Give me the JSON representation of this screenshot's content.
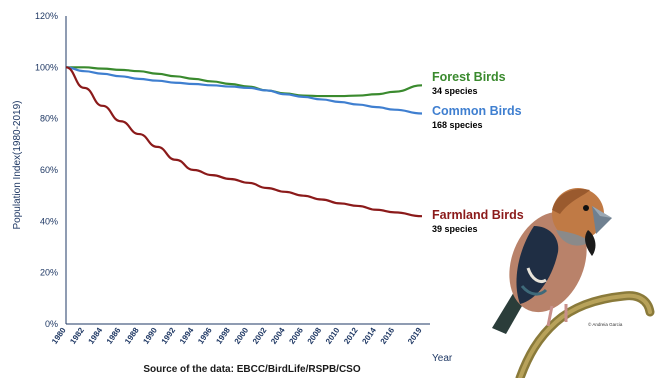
{
  "chart_data": {
    "type": "line",
    "ylabel": "Population Index(1980-2019)",
    "xlabel": "Year",
    "source": "Source of the data: EBCC/BirdLife/RSPB/CSO",
    "ylim": [
      0,
      120
    ],
    "xlim": [
      1980,
      2019
    ],
    "y_ticks": [
      "0%",
      "20%",
      "40%",
      "60%",
      "80%",
      "100%",
      "120%"
    ],
    "y_tick_values": [
      0,
      20,
      40,
      60,
      80,
      100,
      120
    ],
    "x_ticks": [
      "1980",
      "1982",
      "1984",
      "1986",
      "1988",
      "1990",
      "1992",
      "1994",
      "1996",
      "1998",
      "2000",
      "2002",
      "2004",
      "2006",
      "2008",
      "2010",
      "2012",
      "2014",
      "2016",
      "2019"
    ],
    "x_tick_values": [
      1980,
      1982,
      1984,
      1986,
      1988,
      1990,
      1992,
      1994,
      1996,
      1998,
      2000,
      2002,
      2004,
      2006,
      2008,
      2010,
      2012,
      2014,
      2016,
      2019
    ],
    "grid": false,
    "legend": "right-inline",
    "x": [
      1980,
      1982,
      1984,
      1986,
      1988,
      1990,
      1992,
      1994,
      1996,
      1998,
      2000,
      2002,
      2004,
      2006,
      2008,
      2010,
      2012,
      2014,
      2016,
      2019
    ],
    "series": [
      {
        "name": "Forest Birds",
        "count_label": "34 species",
        "color": "#3a8a2e",
        "values": [
          100,
          100,
          99.5,
          99,
          98.5,
          97.5,
          96.5,
          95.5,
          94.5,
          93.5,
          92.5,
          91,
          89.8,
          89,
          88.8,
          88.8,
          89,
          89.5,
          90.5,
          93
        ]
      },
      {
        "name": "Common Birds",
        "count_label": "168 species",
        "color": "#3f7fd0",
        "values": [
          100,
          98.5,
          97.5,
          96.5,
          95.5,
          94.8,
          94,
          93.5,
          93,
          92.5,
          92,
          91,
          89.5,
          88.5,
          87.5,
          86.5,
          85.5,
          84.5,
          83.5,
          82
        ]
      },
      {
        "name": "Farmland Birds",
        "count_label": "39 species",
        "color": "#8b1a1a",
        "values": [
          100,
          92,
          85,
          79,
          74,
          69,
          64,
          60,
          58,
          56.5,
          55,
          53,
          51.5,
          50,
          48.5,
          47,
          46,
          44.5,
          43.5,
          42
        ]
      }
    ]
  },
  "illustration": {
    "subject": "hawfinch",
    "credit": "© Andreia Garcia"
  }
}
